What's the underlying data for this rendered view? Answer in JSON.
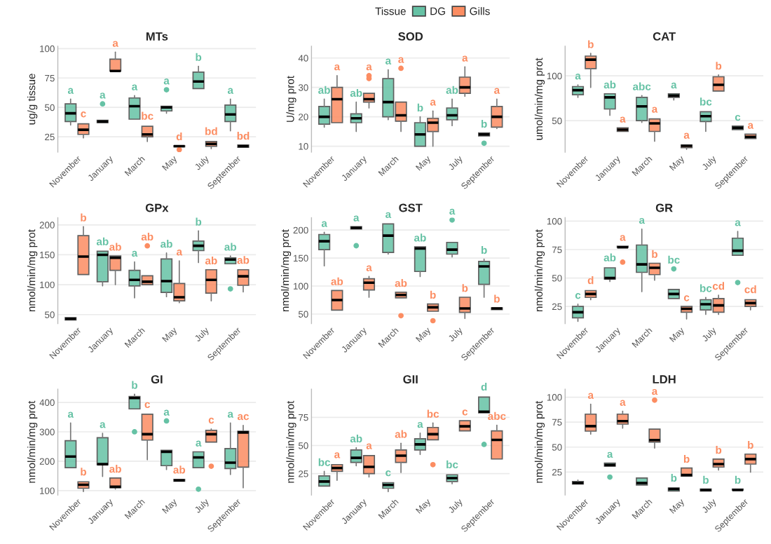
{
  "chart_data": [
    {
      "type": "box",
      "title": "MTs",
      "ylabel": "ug/g tissue",
      "categories": [
        "November",
        "January",
        "March",
        "May",
        "July",
        "September"
      ],
      "ylim": [
        12,
        102
      ],
      "yticks": [
        25,
        50,
        75,
        100
      ],
      "grid": "y",
      "legend": "top",
      "legend_title": "Tissue",
      "series": [
        {
          "name": "DG",
          "color": "#66c2a5",
          "value_labels": [
            "a",
            "a",
            "a",
            "a",
            "b",
            "a"
          ],
          "boxes": [
            {
              "low": 35,
              "q1": 38,
              "median": 45,
              "q3": 53,
              "high": 57
            },
            {
              "low": 36,
              "q1": 37,
              "median": 38,
              "q3": 39,
              "high": 39,
              "outliers": [
                53
              ]
            },
            {
              "low": 40,
              "q1": 40,
              "median": 51,
              "q3": 58,
              "high": 60
            },
            {
              "low": 45,
              "q1": 47,
              "median": 50,
              "q3": 51,
              "high": 52,
              "outliers": [
                65
              ]
            },
            {
              "low": 66,
              "q1": 66,
              "median": 72,
              "q3": 80,
              "high": 85
            },
            {
              "low": 30,
              "q1": 38,
              "median": 44,
              "q3": 52,
              "high": 57
            }
          ]
        },
        {
          "name": "Gills",
          "color": "#fc8d62",
          "value_labels": [
            "c",
            "a",
            "bc",
            "d",
            "bd",
            "bd"
          ],
          "boxes": [
            {
              "low": 24,
              "q1": 27,
              "median": 31,
              "q3": 36,
              "high": 37
            },
            {
              "low": 81,
              "q1": 81,
              "median": 81,
              "q3": 91,
              "high": 97
            },
            {
              "low": 21,
              "q1": 25,
              "median": 27,
              "q3": 34,
              "high": 35
            },
            {
              "low": 16.5,
              "q1": 16.5,
              "median": 17,
              "q3": 17.5,
              "high": 17.5,
              "outliers": [
                14
              ]
            },
            {
              "low": 15,
              "q1": 17,
              "median": 19,
              "q3": 21,
              "high": 22
            },
            {
              "low": 16,
              "q1": 16,
              "median": 17,
              "q3": 18,
              "high": 18
            }
          ]
        }
      ]
    },
    {
      "type": "box",
      "title": "SOD",
      "ylabel": "U/mg prot",
      "categories": [
        "November",
        "January",
        "March",
        "May",
        "July",
        "September"
      ],
      "ylim": [
        8,
        44
      ],
      "yticks": [
        10,
        20,
        30,
        40
      ],
      "grid": "y",
      "series": [
        {
          "color": "#66c2a5",
          "value_labels": [
            "ab",
            "ab",
            "a",
            "b",
            "ab",
            "b"
          ],
          "boxes": [
            {
              "low": 16.5,
              "q1": 17.5,
              "median": 20,
              "q3": 23.5,
              "high": 26
            },
            {
              "low": 15,
              "q1": 18,
              "median": 19.5,
              "q3": 21,
              "high": 25
            },
            {
              "low": 19,
              "q1": 20,
              "median": 25,
              "q3": 33,
              "high": 36
            },
            {
              "low": 10,
              "q1": 10,
              "median": 14,
              "q3": 18,
              "high": 20
            },
            {
              "low": 17,
              "q1": 19,
              "median": 20.5,
              "q3": 23,
              "high": 26
            },
            {
              "low": 13.5,
              "q1": 13.5,
              "median": 14,
              "q3": 14.5,
              "high": 14.5,
              "outliers": [
                11
              ]
            }
          ]
        },
        {
          "color": "#fc8d62",
          "value_labels": [
            "a",
            "a",
            "a",
            "a",
            "a",
            "a"
          ],
          "boxes": [
            {
              "low": 18,
              "q1": 18,
              "median": 26,
              "q3": 30,
              "high": 34
            },
            {
              "low": 23,
              "q1": 25,
              "median": 26,
              "q3": 28,
              "high": 28,
              "outliers": [
                33,
                34
              ]
            },
            {
              "low": 15,
              "q1": 18.5,
              "median": 20.5,
              "q3": 25,
              "high": 25,
              "outliers": [
                36.5
              ]
            },
            {
              "low": 10,
              "q1": 15,
              "median": 18,
              "q3": 19.5,
              "high": 22
            },
            {
              "low": 27,
              "q1": 28,
              "median": 30,
              "q3": 33.5,
              "high": 37
            },
            {
              "low": 16,
              "q1": 16.5,
              "median": 20,
              "q3": 23.5,
              "high": 26
            }
          ]
        }
      ]
    },
    {
      "type": "box",
      "title": "CAT",
      "ylabel": "umol/min/mg prot",
      "categories": [
        "November",
        "January",
        "March",
        "May",
        "July",
        "September"
      ],
      "ylim": [
        15,
        133
      ],
      "yticks": [
        50,
        100
      ],
      "grid": "y",
      "series": [
        {
          "color": "#66c2a5",
          "value_labels": [
            "a",
            "ab",
            "abc",
            "a",
            "bc",
            "c"
          ],
          "boxes": [
            {
              "low": 76,
              "q1": 79,
              "median": 84,
              "q3": 88,
              "high": 90
            },
            {
              "low": 56,
              "q1": 63,
              "median": 76,
              "q3": 80,
              "high": 80
            },
            {
              "low": 48,
              "q1": 50,
              "median": 66,
              "q3": 76,
              "high": 78
            },
            {
              "low": 73,
              "q1": 76,
              "median": 78,
              "q3": 80,
              "high": 80
            },
            {
              "low": 38,
              "q1": 49,
              "median": 55,
              "q3": 60,
              "high": 61
            },
            {
              "low": 39,
              "q1": 40,
              "median": 42,
              "q3": 44,
              "high": 44
            }
          ]
        },
        {
          "color": "#fc8d62",
          "value_labels": [
            "b",
            "a",
            "a",
            "a",
            "b",
            "a"
          ],
          "boxes": [
            {
              "low": 87,
              "q1": 108,
              "median": 118,
              "q3": 122,
              "high": 125
            },
            {
              "low": 37,
              "q1": 38,
              "median": 40,
              "q3": 42,
              "high": 42
            },
            {
              "low": 27,
              "q1": 38,
              "median": 47,
              "q3": 52,
              "high": 53
            },
            {
              "low": 18,
              "q1": 20,
              "median": 22,
              "q3": 23,
              "high": 24
            },
            {
              "low": 82,
              "q1": 83,
              "median": 90,
              "q3": 99,
              "high": 101
            },
            {
              "low": 29,
              "q1": 30,
              "median": 32,
              "q3": 35,
              "high": 35
            }
          ]
        }
      ]
    },
    {
      "type": "box",
      "title": "GPx",
      "ylabel": "nmol/min/mg prot",
      "categories": [
        "November",
        "January",
        "March",
        "May",
        "July",
        "September"
      ],
      "ylim": [
        35,
        212
      ],
      "yticks": [
        50,
        100,
        150,
        200
      ],
      "grid": "y",
      "series": [
        {
          "color": "#66c2a5",
          "value_labels": [
            null,
            "ab",
            "a",
            "ab",
            "b",
            "ab"
          ],
          "boxes": [
            {
              "low": 39,
              "q1": 41,
              "median": 43,
              "q3": 45,
              "high": 47
            },
            {
              "low": 98,
              "q1": 105,
              "median": 150,
              "q3": 156,
              "high": 157
            },
            {
              "low": 78,
              "q1": 98,
              "median": 108,
              "q3": 124,
              "high": 138
            },
            {
              "low": 80,
              "q1": 87,
              "median": 106,
              "q3": 143,
              "high": 153
            },
            {
              "low": 137,
              "q1": 157,
              "median": 165,
              "q3": 173,
              "high": 190
            },
            {
              "low": 135,
              "q1": 135,
              "median": 142,
              "q3": 145,
              "high": 148,
              "outliers": [
                93
              ]
            }
          ]
        },
        {
          "color": "#fc8d62",
          "value_labels": [
            "b",
            "ab",
            "ab",
            "a",
            "ab",
            "ab"
          ],
          "boxes": [
            {
              "low": 116,
              "q1": 117,
              "median": 147,
              "q3": 182,
              "high": 197
            },
            {
              "low": 100,
              "q1": 124,
              "median": 145,
              "q3": 148,
              "high": 148
            },
            {
              "low": 98,
              "q1": 100,
              "median": 105,
              "q3": 115,
              "high": 115,
              "outliers": [
                165
              ]
            },
            {
              "low": 70,
              "q1": 73,
              "median": 79,
              "q3": 102,
              "high": 140
            },
            {
              "low": 73,
              "q1": 86,
              "median": 108,
              "q3": 125,
              "high": 125
            },
            {
              "low": 88,
              "q1": 99,
              "median": 114,
              "q3": 125,
              "high": 126
            }
          ]
        }
      ]
    },
    {
      "type": "box",
      "title": "GST",
      "ylabel": "nmol/min/mg prot",
      "categories": [
        "November",
        "January",
        "March",
        "May",
        "July",
        "September"
      ],
      "ylim": [
        33,
        222
      ],
      "yticks": [
        50,
        100,
        150,
        200
      ],
      "grid": "y",
      "series": [
        {
          "color": "#66c2a5",
          "value_labels": [
            "a",
            "a",
            "a",
            "ab",
            "a",
            "b"
          ],
          "boxes": [
            {
              "low": 136,
              "q1": 165,
              "median": 180,
              "q3": 192,
              "high": 196
            },
            {
              "low": 202,
              "q1": 202,
              "median": 204,
              "q3": 206,
              "high": 206,
              "outliers": [
                172
              ]
            },
            {
              "low": 157,
              "q1": 160,
              "median": 190,
              "q3": 211,
              "high": 212
            },
            {
              "low": 117,
              "q1": 126,
              "median": 167,
              "q3": 170,
              "high": 170
            },
            {
              "low": 152,
              "q1": 157,
              "median": 165,
              "q3": 178,
              "high": 178,
              "outliers": [
                218
              ]
            },
            {
              "low": 80,
              "q1": 103,
              "median": 135,
              "q3": 144,
              "high": 148
            }
          ]
        },
        {
          "color": "#fc8d62",
          "value_labels": [
            "ab",
            "a",
            "ab",
            "b",
            "b",
            "b"
          ],
          "boxes": [
            {
              "low": 57,
              "q1": 57,
              "median": 75,
              "q3": 92,
              "high": 92
            },
            {
              "low": 80,
              "q1": 93,
              "median": 106,
              "q3": 113,
              "high": 117
            },
            {
              "low": 79,
              "q1": 79,
              "median": 84,
              "q3": 89,
              "high": 89,
              "outliers": [
                47
              ]
            },
            {
              "low": 55,
              "q1": 55,
              "median": 62,
              "q3": 68,
              "high": 68,
              "outliers": [
                38
              ]
            },
            {
              "low": 42,
              "q1": 53,
              "median": 60,
              "q3": 80,
              "high": 80
            },
            {
              "low": 58,
              "q1": 58,
              "median": 60,
              "q3": 61,
              "high": 61
            }
          ]
        }
      ]
    },
    {
      "type": "box",
      "title": "GR",
      "ylabel": "nmol/min/mg prot",
      "categories": [
        "November",
        "January",
        "March",
        "May",
        "July",
        "September"
      ],
      "ylim": [
        10,
        103
      ],
      "yticks": [
        25,
        50,
        75,
        100
      ],
      "grid": "y",
      "series": [
        {
          "color": "#66c2a5",
          "value_labels": [
            "c",
            "ab",
            "a",
            "bc",
            "bc",
            "a"
          ],
          "boxes": [
            {
              "low": 12,
              "q1": 15,
              "median": 20,
              "q3": 25,
              "high": 27
            },
            {
              "low": 47,
              "q1": 49,
              "median": 50,
              "q3": 59,
              "high": 60
            },
            {
              "low": 38,
              "q1": 55,
              "median": 62,
              "q3": 79,
              "high": 93
            },
            {
              "low": 31,
              "q1": 32,
              "median": 36,
              "q3": 40,
              "high": 40,
              "outliers": [
                58
              ]
            },
            {
              "low": 18,
              "q1": 22,
              "median": 27,
              "q3": 31,
              "high": 33
            },
            {
              "low": 70,
              "q1": 70,
              "median": 74,
              "q3": 85,
              "high": 91,
              "outliers": [
                46
              ]
            }
          ]
        },
        {
          "color": "#fc8d62",
          "value_labels": [
            "d",
            "a",
            "b",
            "c",
            "cd",
            "cd"
          ],
          "boxes": [
            {
              "low": 31,
              "q1": 33,
              "median": 36,
              "q3": 39,
              "high": 40
            },
            {
              "low": 77,
              "q1": 77,
              "median": 77,
              "q3": 78,
              "high": 78,
              "outliers": [
                64
              ]
            },
            {
              "low": 48,
              "q1": 53,
              "median": 59,
              "q3": 63,
              "high": 63
            },
            {
              "low": 14,
              "q1": 20,
              "median": 23,
              "q3": 25,
              "high": 25
            },
            {
              "low": 18,
              "q1": 20,
              "median": 26,
              "q3": 32,
              "high": 35
            },
            {
              "low": 22,
              "q1": 25,
              "median": 28,
              "q3": 31,
              "high": 32
            }
          ]
        }
      ]
    },
    {
      "type": "box",
      "title": "GI",
      "ylabel": "nmol/min/mg prot",
      "categories": [
        "November",
        "January",
        "March",
        "May",
        "July",
        "September"
      ],
      "ylim": [
        85,
        445
      ],
      "yticks": [
        100,
        200,
        300,
        400
      ],
      "grid": "y",
      "series": [
        {
          "color": "#66c2a5",
          "value_labels": [
            "a",
            "a",
            "b",
            "a",
            "a",
            "a"
          ],
          "boxes": [
            {
              "low": 175,
              "q1": 178,
              "median": 216,
              "q3": 270,
              "high": 330
            },
            {
              "low": 148,
              "q1": 188,
              "median": 190,
              "q3": 280,
              "high": 295
            },
            {
              "low": 378,
              "q1": 378,
              "median": 415,
              "q3": 420,
              "high": 428,
              "outliers": [
                300
              ]
            },
            {
              "low": 172,
              "q1": 185,
              "median": 232,
              "q3": 237,
              "high": 237,
              "outliers": [
                337
              ]
            },
            {
              "low": 178,
              "q1": 178,
              "median": 213,
              "q3": 232,
              "high": 232,
              "outliers": [
                105
              ]
            },
            {
              "low": 155,
              "q1": 175,
              "median": 195,
              "q3": 243,
              "high": 330
            }
          ]
        },
        {
          "color": "#fc8d62",
          "value_labels": [
            "b",
            "ab",
            "c",
            "ab",
            "c",
            "ac"
          ],
          "boxes": [
            {
              "low": 97,
              "q1": 108,
              "median": 120,
              "q3": 130,
              "high": 133
            },
            {
              "low": 105,
              "q1": 110,
              "median": 113,
              "q3": 143,
              "high": 143
            },
            {
              "low": 205,
              "q1": 272,
              "median": 292,
              "q3": 360,
              "high": 363
            },
            {
              "low": 130,
              "q1": 132,
              "median": 135,
              "q3": 138,
              "high": 140
            },
            {
              "low": 265,
              "q1": 265,
              "median": 292,
              "q3": 305,
              "high": 310,
              "outliers": [
                183
              ]
            },
            {
              "low": 110,
              "q1": 180,
              "median": 298,
              "q3": 302,
              "high": 322
            }
          ]
        }
      ]
    },
    {
      "type": "box",
      "title": "GII",
      "ylabel": "nmol/min/mg prot",
      "categories": [
        "November",
        "January",
        "March",
        "May",
        "July",
        "September"
      ],
      "ylim": [
        6,
        100
      ],
      "yticks": [
        25,
        50,
        75
      ],
      "grid": "y",
      "series": [
        {
          "color": "#66c2a5",
          "value_labels": [
            "bc",
            "ab",
            "c",
            "a",
            "bc",
            "d"
          ],
          "boxes": [
            {
              "low": 13,
              "q1": 14,
              "median": 18,
              "q3": 23,
              "high": 27
            },
            {
              "low": 32,
              "q1": 35,
              "median": 39,
              "q3": 46,
              "high": 48
            },
            {
              "low": 9,
              "q1": 12,
              "median": 15,
              "q3": 17,
              "high": 18
            },
            {
              "low": 42,
              "q1": 46,
              "median": 51,
              "q3": 56,
              "high": 61
            },
            {
              "low": 16,
              "q1": 18,
              "median": 21,
              "q3": 24,
              "high": 25
            },
            {
              "low": 79,
              "q1": 79,
              "median": 80,
              "q3": 93,
              "high": 94,
              "outliers": [
                51
              ]
            }
          ]
        },
        {
          "color": "#fc8d62",
          "value_labels": [
            "a",
            "a",
            "ab",
            "bc",
            "c",
            "abc"
          ],
          "boxes": [
            {
              "low": 19,
              "q1": 27,
              "median": 30,
              "q3": 33,
              "high": 34
            },
            {
              "low": 22,
              "q1": 25,
              "median": 31,
              "q3": 41,
              "high": 42
            },
            {
              "low": 26,
              "q1": 35,
              "median": 41,
              "q3": 46,
              "high": 52
            },
            {
              "low": 55,
              "q1": 55,
              "median": 60,
              "q3": 66,
              "high": 70,
              "outliers": [
                33
              ]
            },
            {
              "low": 62,
              "q1": 63,
              "median": 67,
              "q3": 72,
              "high": 72
            },
            {
              "low": 37,
              "q1": 38,
              "median": 55,
              "q3": 63,
              "high": 68
            }
          ]
        }
      ]
    },
    {
      "type": "box",
      "title": "LDH",
      "ylabel": "nmol/min/mg prot",
      "categories": [
        "November",
        "January",
        "March",
        "May",
        "July",
        "September"
      ],
      "ylim": [
        2,
        108
      ],
      "yticks": [
        25,
        50,
        75,
        100
      ],
      "grid": "y",
      "series": [
        {
          "color": "#66c2a5",
          "value_labels": [
            null,
            "a",
            null,
            "b",
            "b",
            "b"
          ],
          "boxes": [
            {
              "low": 12,
              "q1": 13,
              "median": 14,
              "q3": 15.5,
              "high": 17
            },
            {
              "low": 31,
              "q1": 31,
              "median": 32,
              "q3": 34,
              "high": 34,
              "outliers": [
                20
              ]
            },
            {
              "low": 11,
              "q1": 12,
              "median": 14,
              "q3": 19,
              "high": 20
            },
            {
              "low": 6,
              "q1": 6,
              "median": 8,
              "q3": 9,
              "high": 10
            },
            {
              "low": 6,
              "q1": 6,
              "median": 7,
              "q3": 8,
              "high": 8
            },
            {
              "low": 6,
              "q1": 7,
              "median": 7,
              "q3": 8,
              "high": 8
            }
          ]
        },
        {
          "color": "#fc8d62",
          "value_labels": [
            "a",
            "a",
            "a",
            "b",
            "b",
            "b"
          ],
          "boxes": [
            {
              "low": 63,
              "q1": 66,
              "median": 71,
              "q3": 83,
              "high": 93
            },
            {
              "low": 69,
              "q1": 73,
              "median": 76,
              "q3": 83,
              "high": 86
            },
            {
              "low": 49,
              "q1": 55,
              "median": 57,
              "q3": 68,
              "high": 68,
              "outliers": [
                97
              ]
            },
            {
              "low": 20,
              "q1": 21,
              "median": 22,
              "q3": 29,
              "high": 29
            },
            {
              "low": 27,
              "q1": 30,
              "median": 33,
              "q3": 38,
              "high": 38
            },
            {
              "low": 25,
              "q1": 33,
              "median": 38,
              "q3": 43,
              "high": 43
            }
          ]
        }
      ]
    }
  ]
}
